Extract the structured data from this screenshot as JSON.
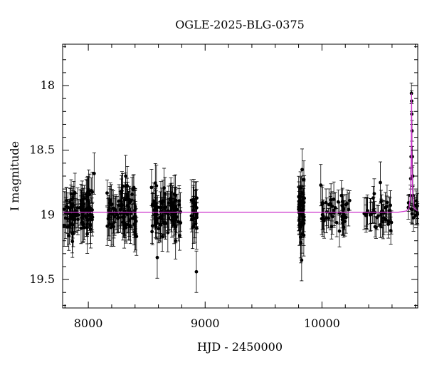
{
  "chart_data": {
    "type": "scatter",
    "title": "OGLE-2025-BLG-0375",
    "xlabel": "HJD - 2450000",
    "ylabel": "I magnitude",
    "xlim": [
      7780,
      10820
    ],
    "ylim": [
      19.72,
      17.68
    ],
    "y_inverted": true,
    "grid": false,
    "x_ticks": [
      8000,
      9000,
      10000
    ],
    "x_tick_labels": [
      "8000",
      "9000",
      "10000"
    ],
    "y_ticks": [
      18,
      18.5,
      19,
      19.5
    ],
    "y_tick_labels": [
      "18",
      "18.5",
      "19",
      "19.5"
    ],
    "baseline_magnitude": 18.98,
    "model_color": "#cc33cc",
    "point_color": "#000000",
    "observing_seasons": [
      {
        "start": 7790,
        "end": 8040,
        "mean": 18.98,
        "scatter": 0.09,
        "error": 0.12,
        "n": 90
      },
      {
        "start": 8160,
        "end": 8420,
        "mean": 18.98,
        "scatter": 0.09,
        "error": 0.12,
        "n": 90
      },
      {
        "start": 8540,
        "end": 8790,
        "mean": 18.98,
        "scatter": 0.09,
        "error": 0.12,
        "n": 90
      },
      {
        "start": 8880,
        "end": 8930,
        "mean": 18.99,
        "scatter": 0.09,
        "error": 0.13,
        "n": 22
      },
      {
        "start": 9800,
        "end": 9850,
        "mean": 18.98,
        "scatter": 0.11,
        "error": 0.13,
        "n": 45
      },
      {
        "start": 9990,
        "end": 10240,
        "mean": 18.98,
        "scatter": 0.06,
        "error": 0.1,
        "n": 45
      },
      {
        "start": 10360,
        "end": 10600,
        "mean": 18.97,
        "scatter": 0.07,
        "error": 0.1,
        "n": 40
      },
      {
        "start": 10730,
        "end": 10820,
        "mean": 18.95,
        "scatter": 0.05,
        "error": 0.08,
        "n": 15
      }
    ],
    "event_points": [
      {
        "x": 10766,
        "y": 18.06
      },
      {
        "x": 10768,
        "y": 18.12
      },
      {
        "x": 10769,
        "y": 18.22
      },
      {
        "x": 10771,
        "y": 18.35
      },
      {
        "x": 10763,
        "y": 18.55
      },
      {
        "x": 10774,
        "y": 18.55
      },
      {
        "x": 10760,
        "y": 18.72
      },
      {
        "x": 10777,
        "y": 18.7
      },
      {
        "x": 10757,
        "y": 18.85
      },
      {
        "x": 10781,
        "y": 18.85
      }
    ],
    "outliers": [
      {
        "x": 8925,
        "y": 19.44
      },
      {
        "x": 9830,
        "y": 18.65
      },
      {
        "x": 9990,
        "y": 18.77
      },
      {
        "x": 10500,
        "y": 18.75
      },
      {
        "x": 8050,
        "y": 18.68
      },
      {
        "x": 8320,
        "y": 18.7
      },
      {
        "x": 9826,
        "y": 19.35
      },
      {
        "x": 8590,
        "y": 19.33
      }
    ],
    "model": [
      [
        7780,
        18.98
      ],
      [
        10650,
        18.98
      ],
      [
        10720,
        18.97
      ],
      [
        10745,
        18.95
      ],
      [
        10755,
        18.88
      ],
      [
        10760,
        18.76
      ],
      [
        10764,
        18.55
      ],
      [
        10766,
        18.2
      ],
      [
        10767,
        18.06
      ],
      [
        10768,
        18.2
      ],
      [
        10770,
        18.55
      ],
      [
        10774,
        18.76
      ],
      [
        10779,
        18.88
      ],
      [
        10790,
        18.95
      ],
      [
        10820,
        18.97
      ]
    ]
  }
}
